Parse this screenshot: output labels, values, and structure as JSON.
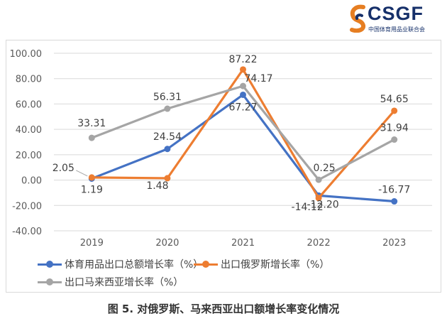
{
  "logo": {
    "word": "CSGF",
    "subtitle": "中国体育用品业联合会"
  },
  "caption": "图 5. 对俄罗斯、马来西亚出口额增长率变化情况",
  "chart_data": {
    "type": "line",
    "categories": [
      "2019",
      "2020",
      "2021",
      "2022",
      "2023"
    ],
    "ylim": [
      -40,
      100
    ],
    "yticks": [
      "-40.00",
      "-20.00",
      "0.00",
      "20.00",
      "40.00",
      "60.00",
      "80.00",
      "100.00"
    ],
    "grid": true,
    "legend_position": "bottom",
    "series": [
      {
        "name": "体育用品出口总额增长率（%）",
        "color": "#4472c4",
        "values": [
          1.19,
          24.54,
          67.27,
          -12.2,
          -16.77
        ],
        "labels": [
          "1.19",
          "24.54",
          "67.27",
          "-12.20",
          "-16.77"
        ]
      },
      {
        "name": "出口俄罗斯增长率（%）",
        "color": "#ed7d31",
        "values": [
          2.05,
          1.48,
          87.22,
          -14.12,
          54.65
        ],
        "labels": [
          "2.05",
          "1.48",
          "87.22",
          "-14.12",
          "54.65"
        ]
      },
      {
        "name": "出口马来西亚增长率（%）",
        "color": "#a5a5a5",
        "values": [
          33.31,
          56.31,
          74.17,
          0.25,
          31.94
        ],
        "labels": [
          "33.31",
          "56.31",
          "74.17",
          "0.25",
          "31.94"
        ]
      }
    ]
  }
}
